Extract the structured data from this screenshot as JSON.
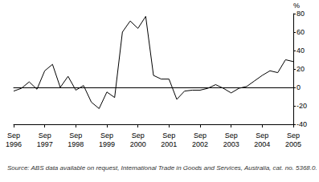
{
  "chart_data": {
    "type": "line",
    "y_label": "%",
    "source": "Source: ABS data available on request, International Trade in Goods and Services, Australia, cat. no. 5368.0.",
    "categories": [
      "Sep 1996",
      null,
      null,
      null,
      "Sep 1997",
      null,
      null,
      null,
      "Sep 1998",
      null,
      null,
      null,
      "Sep 1999",
      null,
      null,
      null,
      "Sep 2000",
      null,
      null,
      null,
      "Sep 2001",
      null,
      null,
      null,
      "Sep 2002",
      null,
      null,
      null,
      "Sep 2003",
      null,
      null,
      null,
      "Sep 2004",
      null,
      null,
      null,
      "Sep 2005"
    ],
    "values": [
      -4,
      -1,
      6,
      -2,
      18,
      25,
      0,
      12,
      -3,
      2,
      -16,
      -23,
      -5,
      -11,
      60,
      72,
      64,
      77,
      13,
      9,
      9,
      -13,
      -4,
      -3,
      -3,
      -1,
      3,
      -1,
      -6,
      -1,
      1,
      7,
      13,
      18,
      16,
      30,
      28
    ],
    "color": "#000000",
    "ylim": [
      -40,
      80
    ],
    "yticks": [
      -40,
      -20,
      0,
      20,
      40,
      60,
      80
    ],
    "grid": false
  }
}
